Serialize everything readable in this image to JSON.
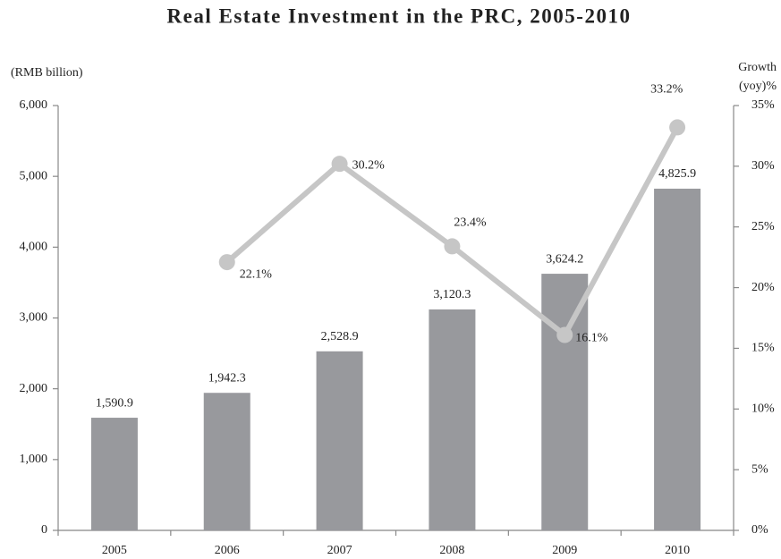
{
  "chart_data": {
    "type": "bar",
    "title": "Real Estate Investment in the PRC, 2005-2010",
    "ylabel": "(RMB billion)",
    "y2label": [
      "Growth",
      "(yoy)%"
    ],
    "categories": [
      "2005",
      "2006",
      "2007",
      "2008",
      "2009",
      "2010"
    ],
    "series": [
      {
        "name": "Real Estate Investment",
        "type": "bar",
        "color": "#98999d",
        "values": [
          1590.9,
          1942.3,
          2528.9,
          3120.3,
          3624.2,
          4825.9
        ],
        "value_labels": [
          "1,590.9",
          "1,942.3",
          "2,528.9",
          "3,120.3",
          "3,624.2",
          "4,825.9"
        ]
      },
      {
        "name": "Growth (yoy)",
        "type": "line",
        "axis": "y2",
        "color": "#c6c6c6",
        "values": [
          null,
          22.1,
          30.2,
          23.4,
          16.1,
          33.2
        ],
        "value_labels": [
          null,
          "22.1%",
          "30.2%",
          "23.4%",
          "16.1%",
          "33.2%"
        ]
      }
    ],
    "ylim": [
      0,
      6000
    ],
    "yticks": [
      0,
      {
        "value": 1000,
        "label": "1,000"
      },
      {
        "value": 2000,
        "label": "2,000"
      },
      {
        "value": 3000,
        "label": "3,000"
      },
      {
        "value": 4000,
        "label": "4,000"
      },
      {
        "value": 5000,
        "label": "5,000"
      },
      {
        "value": 6000,
        "label": "6,000"
      }
    ],
    "y2lim": [
      0,
      35
    ],
    "y2ticks": [
      {
        "value": 0,
        "label": "0%"
      },
      {
        "value": 5,
        "label": "5%"
      },
      {
        "value": 10,
        "label": "10%"
      },
      {
        "value": 15,
        "label": "15%"
      },
      {
        "value": 20,
        "label": "20%"
      },
      {
        "value": 25,
        "label": "25%"
      },
      {
        "value": 30,
        "label": "30%"
      },
      {
        "value": 35,
        "label": "35%"
      }
    ],
    "grid": false
  }
}
